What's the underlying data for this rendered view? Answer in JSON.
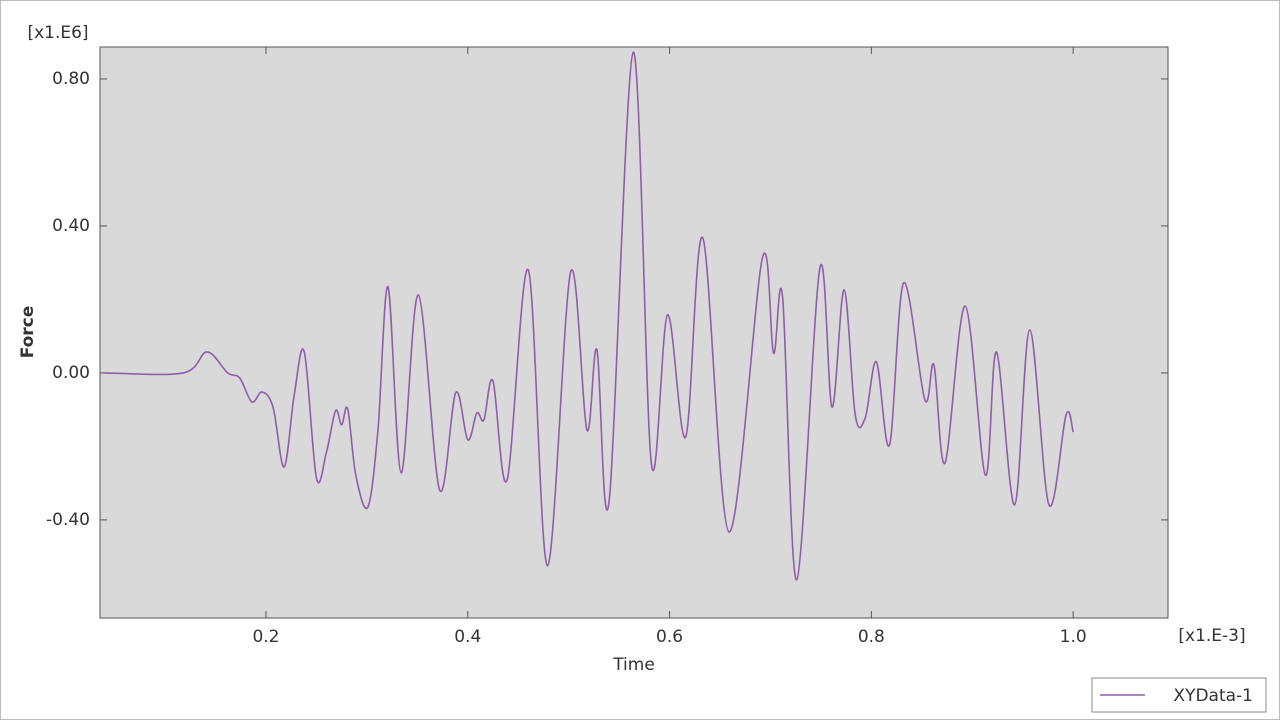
{
  "chart_data": {
    "type": "line",
    "x_axis_label": "Time",
    "y_axis_label": "Force",
    "x_scale_label": "[x1.E-3]",
    "y_scale_label": "[x1.E6]",
    "x": [
      0.04,
      0.118,
      0.1415,
      0.162,
      0.174,
      0.186,
      0.196,
      0.207,
      0.218,
      0.228,
      0.238,
      0.25,
      0.26,
      0.269,
      0.275,
      0.281,
      0.289,
      0.301,
      0.311,
      0.321,
      0.334,
      0.351,
      0.372,
      0.388,
      0.4,
      0.409,
      0.416,
      0.425,
      0.439,
      0.46,
      0.479,
      0.502,
      0.518,
      0.528,
      0.54,
      0.564,
      0.582,
      0.598,
      0.616,
      0.633,
      0.659,
      0.692,
      0.703,
      0.712,
      0.726,
      0.749,
      0.761,
      0.773,
      0.784,
      0.794,
      0.805,
      0.818,
      0.832,
      0.853,
      0.862,
      0.873,
      0.893,
      0.913,
      0.924,
      0.942,
      0.957,
      0.976,
      0.993,
      1.0
    ],
    "series": [
      {
        "name": "XYData-1",
        "color": "#8e5ea8",
        "values": [
          0,
          0,
          0.057,
          0.0,
          -0.014,
          -0.079,
          -0.052,
          -0.093,
          -0.256,
          -0.06,
          0.057,
          -0.286,
          -0.215,
          -0.103,
          -0.141,
          -0.098,
          -0.278,
          -0.365,
          -0.155,
          0.234,
          -0.272,
          0.212,
          -0.318,
          -0.054,
          -0.182,
          -0.109,
          -0.128,
          -0.022,
          -0.291,
          0.28,
          -0.525,
          0.275,
          -0.155,
          0.063,
          -0.351,
          0.873,
          -0.248,
          0.158,
          -0.174,
          0.367,
          -0.433,
          0.313,
          0.054,
          0.207,
          -0.563,
          0.286,
          -0.093,
          0.226,
          -0.114,
          -0.122,
          0.03,
          -0.196,
          0.245,
          -0.073,
          0.022,
          -0.245,
          0.182,
          -0.278,
          0.057,
          -0.359,
          0.117,
          -0.359,
          -0.114,
          -0.161
        ]
      }
    ],
    "xlim": [
      0.0355,
      1.094
    ],
    "ylim": [
      -0.667,
      0.887
    ],
    "xticks": [
      0.2,
      0.4,
      0.6,
      0.8,
      {
        "value": 1,
        "label": "1.0"
      }
    ],
    "yticks": [
      {
        "value": -0.4,
        "label": "-0.40"
      },
      {
        "value": 0,
        "label": "0.00"
      },
      {
        "value": 0.4,
        "label": "0.40"
      },
      {
        "value": 0.8,
        "label": "0.80"
      }
    ],
    "legend": "lower right"
  }
}
